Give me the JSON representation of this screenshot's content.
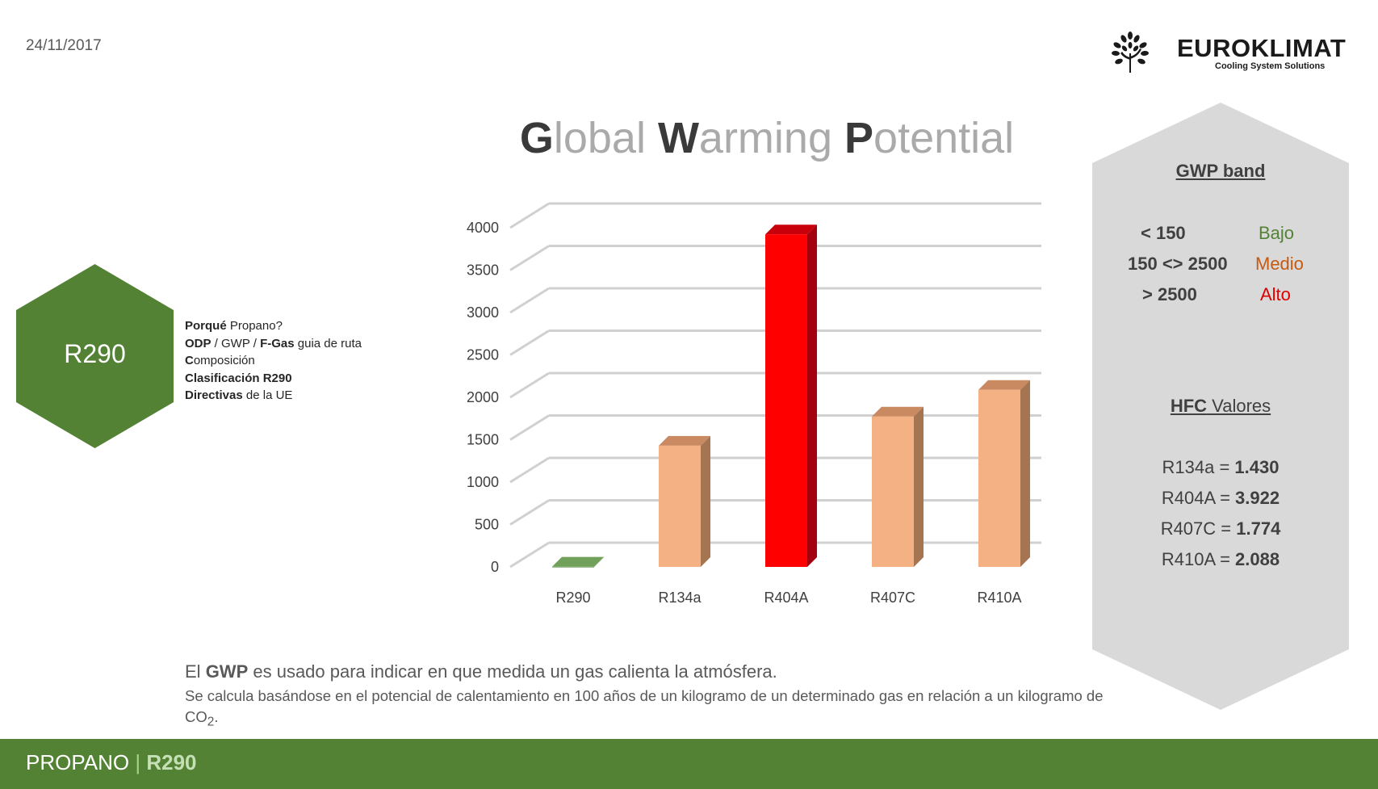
{
  "header": {
    "date": "24/11/2017"
  },
  "logo": {
    "name": "EUROKLIMAT",
    "tagline": "Cooling System Solutions"
  },
  "title": {
    "g": "G",
    "lobal": "lobal",
    "w": "W",
    "arming": "arming",
    "p": "P",
    "otential": "otential"
  },
  "refrigerant": {
    "code": "R290"
  },
  "menu": [
    {
      "bold": "Porqué",
      "rest": " Propano?"
    },
    {
      "b1": "ODP",
      "s1": " / GWP / ",
      "b2": "F-Gas",
      "s2": " guia de ruta"
    },
    {
      "bold": "C",
      "rest": "omposición"
    },
    {
      "bold": "Clasificación  R290",
      "rest": ""
    },
    {
      "bold": "Directivas",
      "rest": " de la UE"
    }
  ],
  "gwp_band": {
    "title": "GWP band",
    "rows": [
      {
        "range": "< 150",
        "level": "Bajo",
        "color": "#548235"
      },
      {
        "range": "150 <> 2500",
        "level": "Medio",
        "color": "#c55a11"
      },
      {
        "range": "> 2500",
        "level": "Alto",
        "color": "#e00000"
      }
    ]
  },
  "hfc": {
    "title_bold": "HFC",
    "title_rest": " Valores",
    "rows": [
      {
        "name": "R134a",
        "value": "1.430"
      },
      {
        "name": "R404A",
        "value": "3.922"
      },
      {
        "name": "R407C",
        "value": "1.774"
      },
      {
        "name": "R410A",
        "value": "2.088"
      }
    ]
  },
  "description": {
    "p1": "El ",
    "p1_bold": "GWP",
    "p1_rest": " es usado para indicar en que medida un gas calienta la atmósfera.",
    "p2": "Se calcula basándose en el potencial de calentamiento en 100 años de un kilogramo de un determinado gas en relación a un kilogramo de CO",
    "p2_sub": "2",
    "p2_end": "."
  },
  "footer": {
    "label": "PROPANO",
    "separator": "|",
    "code": "R290"
  },
  "colors": {
    "green": "#548235",
    "bar_default": "#f4b183",
    "bar_highlight": "#ff0000",
    "bar_zero": "#70a05a",
    "panel_gray": "#d9d9d9"
  },
  "chart_data": {
    "type": "bar",
    "categories": [
      "R290",
      "R134a",
      "R404A",
      "R407C",
      "R410A"
    ],
    "values": [
      3,
      1430,
      3922,
      1774,
      2088
    ],
    "yticks": [
      0,
      500,
      1000,
      1500,
      2000,
      2500,
      3000,
      3500,
      4000
    ],
    "ylim": [
      0,
      4000
    ],
    "highlight_index": 2,
    "grid": true,
    "style": "3d-column"
  }
}
